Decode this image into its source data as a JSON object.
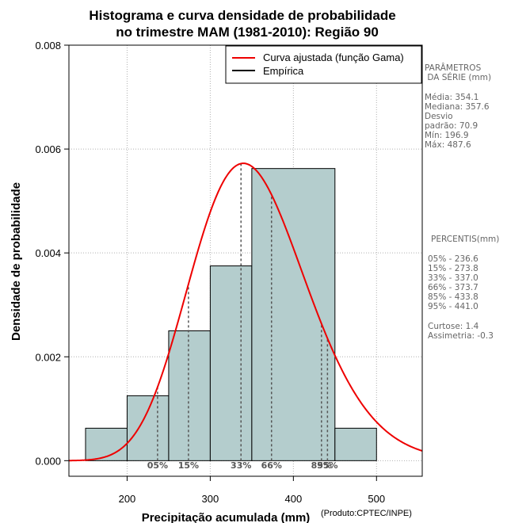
{
  "chart_data": {
    "type": "bar",
    "title": [
      "Histograma e curva densidade de probabilidade",
      "no trimestre MAM (1981-2010): Região 90"
    ],
    "xlabel": "Precipitação acumulada (mm)",
    "ylabel": "Densidade de probabilidade",
    "credit": "(Produto:CPTEC/INPE)",
    "xlim": [
      130,
      555
    ],
    "ylim": [
      -0.0003,
      0.008
    ],
    "x_ticks": [
      200,
      300,
      400,
      500
    ],
    "y_ticks": [
      0.0,
      0.002,
      0.004,
      0.006,
      0.008
    ],
    "y_tick_labels": [
      "0.000",
      "0.002",
      "0.004",
      "0.006",
      "0.008"
    ],
    "bins": [
      {
        "start": 150,
        "end": 200,
        "density": 0.000625
      },
      {
        "start": 200,
        "end": 250,
        "density": 0.00125
      },
      {
        "start": 250,
        "end": 300,
        "density": 0.0025
      },
      {
        "start": 300,
        "end": 350,
        "density": 0.00375
      },
      {
        "start": 350,
        "end": 450,
        "density": 0.005625
      },
      {
        "start": 450,
        "end": 500,
        "density": 0.000625
      }
    ],
    "gamma_curve": {
      "name": "Curva ajustada (função Gama)",
      "shape": 24.95,
      "scale": 14.19,
      "color": "#ee0000"
    },
    "legend": [
      {
        "label": "Curva ajustada (função Gama)",
        "color": "#ee0000"
      },
      {
        "label": "Empírica",
        "color": "#000000"
      }
    ],
    "percentile_lines": [
      {
        "label": "05%",
        "value": 236.6
      },
      {
        "label": "15%",
        "value": 273.8
      },
      {
        "label": "33%",
        "value": 337.0
      },
      {
        "label": "66%",
        "value": 373.7
      },
      {
        "label": "85%",
        "value": 433.8
      },
      {
        "label": "95%",
        "value": 441.0
      }
    ],
    "grid": true,
    "bar_color": "#b4cdcd"
  },
  "side_panel": {
    "params_title": [
      "PARÂMETROS",
      " DA SÉRIE (mm)"
    ],
    "params": [
      "Média:  354.1",
      "Mediana:  357.6",
      "Desvio",
      "padrão:  70.9",
      "Mín:  196.9",
      "Máx:  487.6"
    ],
    "percentis_title": "PERCENTIS(mm)",
    "percentis": [
      "05% -  236.6",
      "15% -  273.8",
      "33% -  337.0",
      "66% -  373.7",
      "85% -  433.8",
      "95% -  441.0"
    ],
    "stats": [
      "Curtose:  1.4",
      "Assimetria:  -0.3"
    ]
  }
}
